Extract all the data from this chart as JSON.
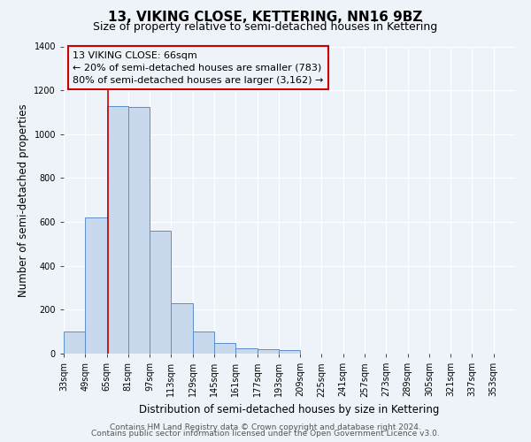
{
  "title": "13, VIKING CLOSE, KETTERING, NN16 9BZ",
  "subtitle": "Size of property relative to semi-detached houses in Kettering",
  "xlabel": "Distribution of semi-detached houses by size in Kettering",
  "ylabel": "Number of semi-detached properties",
  "bin_labels": [
    "33sqm",
    "49sqm",
    "65sqm",
    "81sqm",
    "97sqm",
    "113sqm",
    "129sqm",
    "145sqm",
    "161sqm",
    "177sqm",
    "193sqm",
    "209sqm",
    "225sqm",
    "241sqm",
    "257sqm",
    "273sqm",
    "289sqm",
    "305sqm",
    "321sqm",
    "337sqm",
    "353sqm"
  ],
  "bin_left_edges": [
    33,
    49,
    65,
    81,
    97,
    113,
    129,
    145,
    161,
    177,
    193,
    209,
    225,
    241,
    257,
    273,
    289,
    305,
    321,
    337,
    353
  ],
  "bar_values": [
    100,
    620,
    1130,
    1125,
    560,
    230,
    100,
    50,
    25,
    20,
    15,
    0,
    0,
    0,
    0,
    0,
    0,
    0,
    0,
    0,
    0
  ],
  "bar_color": "#c9d9ed",
  "bar_edge_color": "#5b8fc9",
  "vline_x": 66,
  "vline_color": "#cc0000",
  "annotation_title": "13 VIKING CLOSE: 66sqm",
  "annotation_line1": "← 20% of semi-detached houses are smaller (783)",
  "annotation_line2": "80% of semi-detached houses are larger (3,162) →",
  "annotation_box_color": "#cc0000",
  "ylim": [
    0,
    1400
  ],
  "yticks": [
    0,
    200,
    400,
    600,
    800,
    1000,
    1200,
    1400
  ],
  "footer1": "Contains HM Land Registry data © Crown copyright and database right 2024.",
  "footer2": "Contains public sector information licensed under the Open Government Licence v3.0.",
  "background_color": "#eef2f9",
  "grid_color": "#ffffff",
  "title_fontsize": 11,
  "subtitle_fontsize": 9,
  "axis_label_fontsize": 8.5,
  "tick_fontsize": 7,
  "annotation_fontsize": 8,
  "footer_fontsize": 6.5
}
